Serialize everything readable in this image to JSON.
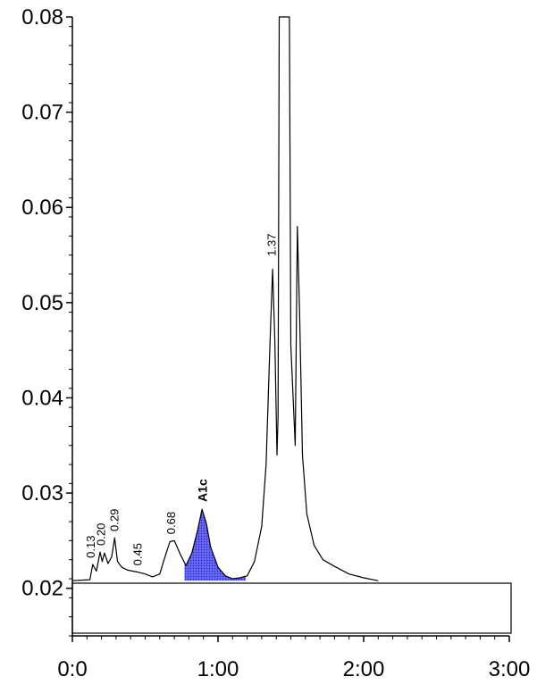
{
  "chart_data": {
    "type": "line",
    "xlim": [
      0,
      3
    ],
    "ylim": [
      0.015,
      0.08
    ],
    "x_ticks": [
      {
        "value": 0,
        "label": "0:0"
      },
      {
        "value": 1,
        "label": "1:00"
      },
      {
        "value": 2,
        "label": "2:00"
      },
      {
        "value": 3,
        "label": "3:00"
      }
    ],
    "y_ticks": [
      {
        "value": 0.08,
        "label": "0.08"
      },
      {
        "value": 0.07,
        "label": "0.07"
      },
      {
        "value": 0.06,
        "label": "0.06"
      },
      {
        "value": 0.05,
        "label": "0.05"
      },
      {
        "value": 0.04,
        "label": "0.04"
      },
      {
        "value": 0.03,
        "label": "0.03"
      },
      {
        "value": 0.02,
        "label": "0.02"
      }
    ],
    "baseline": 0.0208,
    "series": [
      {
        "x": [
          0.0,
          0.12,
          0.14,
          0.165,
          0.19,
          0.205,
          0.22,
          0.245,
          0.27,
          0.29,
          0.31,
          0.34,
          0.38,
          0.45,
          0.5,
          0.55,
          0.6,
          0.64,
          0.67,
          0.7,
          0.74,
          0.78,
          0.82,
          0.86,
          0.89,
          0.92,
          0.95,
          1.0,
          1.05,
          1.1,
          1.15,
          1.2,
          1.25,
          1.3,
          1.33,
          1.355,
          1.375,
          1.39,
          1.405,
          1.412,
          1.42,
          1.45,
          1.49,
          1.5,
          1.53,
          1.545,
          1.56,
          1.58,
          1.61,
          1.66,
          1.72,
          1.8,
          1.9,
          2.0,
          2.1
        ],
        "y": [
          0.0208,
          0.0209,
          0.0225,
          0.0218,
          0.0238,
          0.0228,
          0.0237,
          0.0226,
          0.0233,
          0.0253,
          0.0228,
          0.0222,
          0.0219,
          0.0217,
          0.0215,
          0.0212,
          0.0215,
          0.0235,
          0.0249,
          0.025,
          0.0236,
          0.0224,
          0.0237,
          0.0261,
          0.0283,
          0.0268,
          0.0243,
          0.0222,
          0.0213,
          0.021,
          0.0211,
          0.0213,
          0.0228,
          0.0265,
          0.033,
          0.045,
          0.0535,
          0.046,
          0.034,
          0.038,
          0.08,
          0.08,
          0.08,
          0.0455,
          0.035,
          0.058,
          0.049,
          0.034,
          0.0278,
          0.0245,
          0.023,
          0.0223,
          0.0215,
          0.0211,
          0.0208
        ]
      }
    ],
    "shaded_peak": {
      "label": "A1c",
      "x_start": 0.77,
      "x_end": 1.19,
      "color": "#4a4ae8"
    },
    "peak_labels": [
      {
        "text": "0.13",
        "x": 0.13,
        "y": 0.0228
      },
      {
        "text": "0.20",
        "x": 0.2,
        "y": 0.0241
      },
      {
        "text": "0.29",
        "x": 0.29,
        "y": 0.0256
      },
      {
        "text": "0.45",
        "x": 0.45,
        "y": 0.022
      },
      {
        "text": "0.68",
        "x": 0.68,
        "y": 0.0253
      },
      {
        "text": "A1c",
        "x": 0.9,
        "y": 0.0287
      },
      {
        "text": "1.37",
        "x": 1.37,
        "y": 0.0545
      }
    ],
    "colors": {
      "line": "#000000",
      "fill": "#4a4ae8"
    }
  }
}
